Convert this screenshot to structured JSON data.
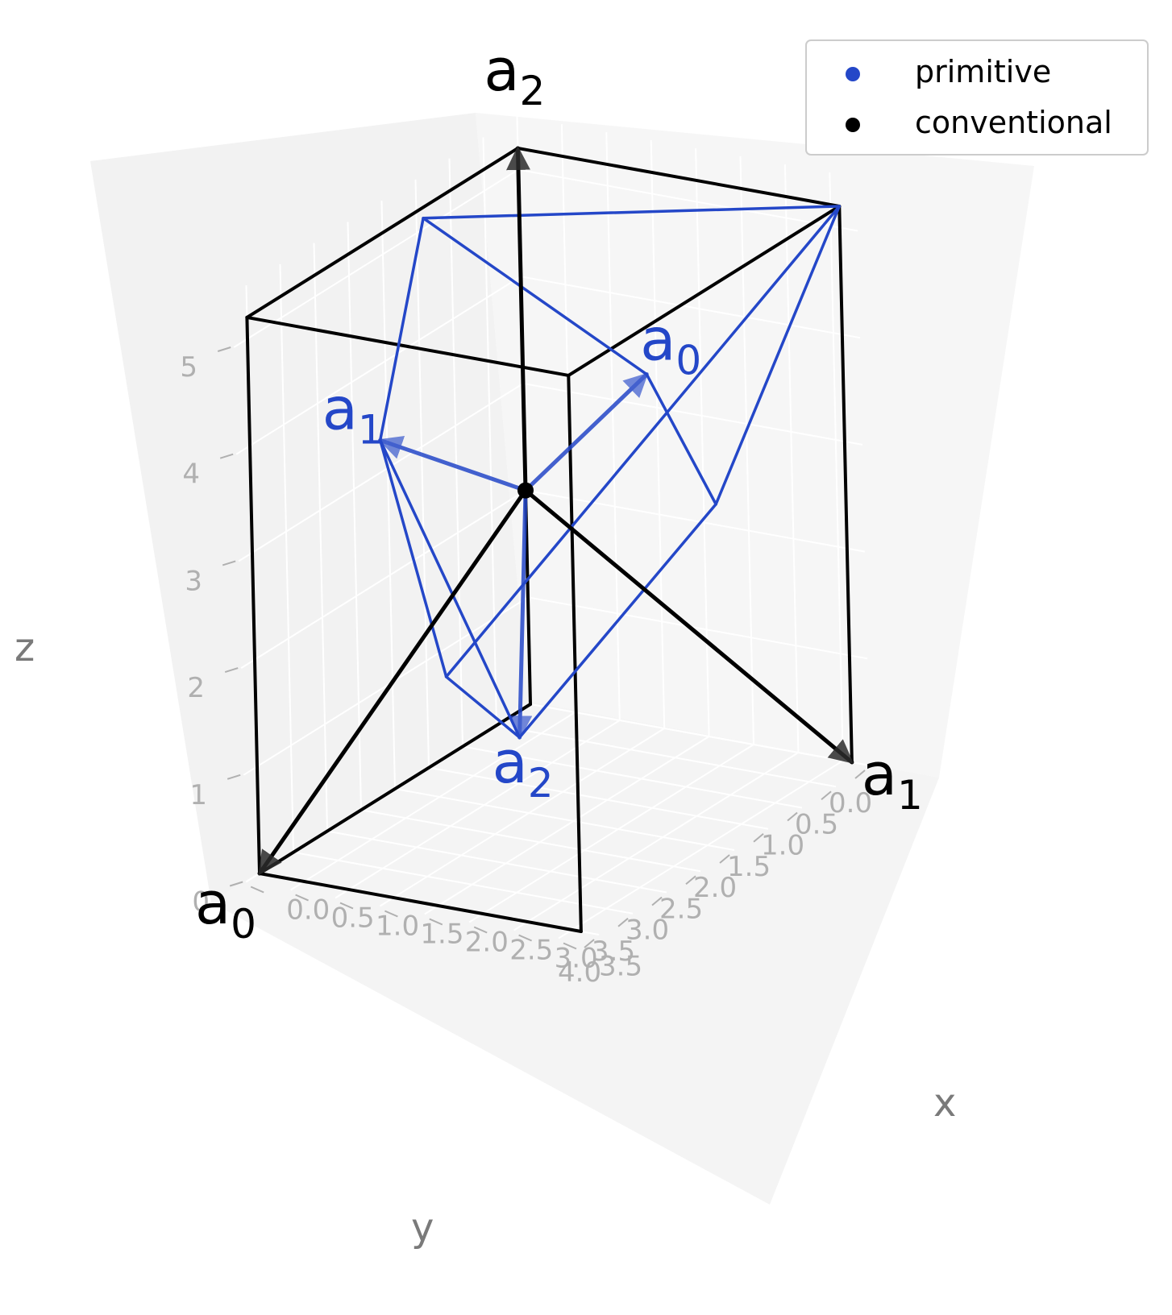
{
  "chart_data": {
    "type": "scatter",
    "projection": "3d",
    "xlabel": "x",
    "ylabel": "y",
    "zlabel": "z",
    "xticks": [
      "0.0",
      "0.5",
      "1.0",
      "1.5",
      "2.0",
      "2.5",
      "3.0",
      "3.5"
    ],
    "yticks": [
      "0.0",
      "0.5",
      "1.0",
      "1.5",
      "2.0",
      "2.5",
      "3.0",
      "3.5",
      "4.0"
    ],
    "zticks": [
      "0",
      "1",
      "2",
      "3",
      "4",
      "5"
    ],
    "xlim": [
      0,
      3.8
    ],
    "ylim": [
      0,
      4.2
    ],
    "zlim": [
      0,
      5.5
    ],
    "grid": true,
    "legend_position": "top-right",
    "legend": [
      {
        "label": "primitive",
        "color": "#2447c8"
      },
      {
        "label": "conventional",
        "color": "#000000"
      }
    ],
    "conventional": {
      "color": "#000000",
      "origin": {
        "x": 0,
        "y": 0,
        "z": 2
      },
      "cell_edges": [
        {
          "from": {
            "x": 0,
            "y": 0,
            "z": 0
          },
          "to": {
            "x": 0,
            "y": 4,
            "z": 0
          }
        },
        {
          "from": {
            "x": 0,
            "y": 4,
            "z": 0
          },
          "to": {
            "x": 3.6,
            "y": 4,
            "z": 0
          }
        },
        {
          "from": {
            "x": 0,
            "y": 0,
            "z": 0
          },
          "to": {
            "x": 0,
            "y": 0,
            "z": 5.2
          }
        },
        {
          "from": {
            "x": 0,
            "y": 4,
            "z": 0
          },
          "to": {
            "x": 0,
            "y": 4,
            "z": 5.2
          }
        },
        {
          "from": {
            "x": 3.6,
            "y": 4,
            "z": 0
          },
          "to": {
            "x": 3.6,
            "y": 4,
            "z": 5.2
          }
        },
        {
          "from": {
            "x": 3.6,
            "y": 0,
            "z": 0
          },
          "to": {
            "x": 3.6,
            "y": 0,
            "z": 5.2
          }
        },
        {
          "from": {
            "x": 0,
            "y": 0,
            "z": 5.2
          },
          "to": {
            "x": 0,
            "y": 4,
            "z": 5.2
          }
        },
        {
          "from": {
            "x": 0,
            "y": 4,
            "z": 5.2
          },
          "to": {
            "x": 3.6,
            "y": 4,
            "z": 5.2
          }
        },
        {
          "from": {
            "x": 3.6,
            "y": 4,
            "z": 5.2
          },
          "to": {
            "x": 3.6,
            "y": 0,
            "z": 5.2
          }
        },
        {
          "from": {
            "x": 3.6,
            "y": 0,
            "z": 5.2
          },
          "to": {
            "x": 0,
            "y": 0,
            "z": 5.2
          }
        }
      ],
      "vectors": [
        {
          "label": "a",
          "sub": "0",
          "to": {
            "x": 0,
            "y": 4,
            "z": 0
          }
        },
        {
          "label": "a",
          "sub": "1",
          "to": {
            "x": 3.6,
            "y": 0,
            "z": 0
          }
        },
        {
          "label": "a",
          "sub": "2",
          "to": {
            "x": 0,
            "y": 0,
            "z": 5.2
          }
        }
      ]
    },
    "primitive": {
      "color": "#2447c8",
      "origin": {
        "x": 0,
        "y": 0,
        "z": 2
      },
      "vectors": [
        {
          "label": "a",
          "sub": "0",
          "to": {
            "x": 1.7,
            "y": 0.4,
            "z": 3.5
          }
        },
        {
          "label": "a",
          "sub": "1",
          "to": {
            "x": 0.0,
            "y": 2.1,
            "z": 3.3
          }
        },
        {
          "label": "a",
          "sub": "2",
          "to": {
            "x": 1.8,
            "y": 2.5,
            "z": 0.95
          }
        }
      ],
      "cell_edges": [
        {
          "from": {
            "x": 0.0,
            "y": 2.1,
            "z": 3.3
          },
          "to": {
            "x": 1.8,
            "y": 2.5,
            "z": 0.95
          }
        },
        {
          "from": {
            "x": 0.0,
            "y": 2.1,
            "z": 3.3
          },
          "to": {
            "x": 0.0,
            "y": 1.4,
            "z": 5.1
          }
        },
        {
          "from": {
            "x": 0.0,
            "y": 1.4,
            "z": 5.1
          },
          "to": {
            "x": 1.7,
            "y": 0.4,
            "z": 3.5
          }
        },
        {
          "from": {
            "x": 1.7,
            "y": 0.4,
            "z": 3.5
          },
          "to": {
            "x": 2.6,
            "y": 0.6,
            "z": 2.5
          }
        },
        {
          "from": {
            "x": 2.6,
            "y": 0.6,
            "z": 2.5
          },
          "to": {
            "x": 1.8,
            "y": 2.5,
            "z": 0.95
          }
        },
        {
          "from": {
            "x": 2.6,
            "y": 0.6,
            "z": 2.5
          },
          "to": {
            "x": 3.6,
            "y": 0,
            "z": 5.2
          }
        },
        {
          "from": {
            "x": 3.6,
            "y": 0,
            "z": 5.2
          },
          "to": {
            "x": 0.0,
            "y": 1.4,
            "z": 5.1
          }
        },
        {
          "from": {
            "x": 3.6,
            "y": 0,
            "z": 5.2
          },
          "to": {
            "x": 1.3,
            "y": 2.9,
            "z": 1.6
          }
        },
        {
          "from": {
            "x": 1.3,
            "y": 2.9,
            "z": 1.6
          },
          "to": {
            "x": 0.0,
            "y": 2.1,
            "z": 3.3
          }
        },
        {
          "from": {
            "x": 1.3,
            "y": 2.9,
            "z": 1.6
          },
          "to": {
            "x": 1.8,
            "y": 2.5,
            "z": 0.95
          }
        }
      ]
    }
  }
}
